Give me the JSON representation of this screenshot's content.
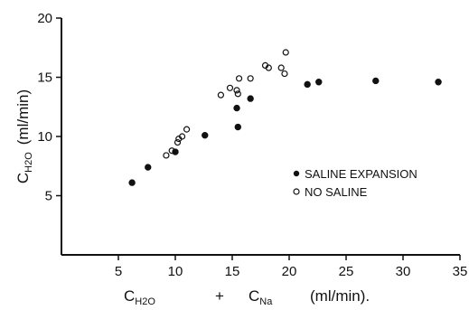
{
  "chart_data": {
    "type": "scatter",
    "title": "",
    "xlim": [
      0,
      35
    ],
    "ylim": [
      0,
      20
    ],
    "x_ticks": [
      5,
      10,
      15,
      20,
      25,
      30,
      35
    ],
    "y_ticks": [
      5,
      10,
      15,
      20
    ],
    "grid": false,
    "legend_position": "right",
    "xlabel": {
      "sym1": "C",
      "sub1": "H2O",
      "plus": "+",
      "sym2": "C",
      "sub2": "Na",
      "unit": "(ml/min)."
    },
    "ylabel": {
      "sym": "C",
      "sub": "H2O",
      "unit": "(ml/min)"
    },
    "series": [
      {
        "name": "SALINE EXPANSION",
        "marker": "filled",
        "color": "#111111",
        "points": [
          [
            6.2,
            6.1
          ],
          [
            7.6,
            7.4
          ],
          [
            10.0,
            8.7
          ],
          [
            12.6,
            10.1
          ],
          [
            15.4,
            12.4
          ],
          [
            15.5,
            10.8
          ],
          [
            16.6,
            13.2
          ],
          [
            21.6,
            14.4
          ],
          [
            22.6,
            14.6
          ],
          [
            27.6,
            14.7
          ],
          [
            33.1,
            14.6
          ]
        ]
      },
      {
        "name": "NO SALINE",
        "marker": "open",
        "color": "#111111",
        "points": [
          [
            9.2,
            8.4
          ],
          [
            9.7,
            8.8
          ],
          [
            10.2,
            9.5
          ],
          [
            10.3,
            9.8
          ],
          [
            10.6,
            10.0
          ],
          [
            11.0,
            10.6
          ],
          [
            14.0,
            13.5
          ],
          [
            14.8,
            14.1
          ],
          [
            15.4,
            13.9
          ],
          [
            15.5,
            13.6
          ],
          [
            15.6,
            14.9
          ],
          [
            16.6,
            14.9
          ],
          [
            17.9,
            16.0
          ],
          [
            18.2,
            15.8
          ],
          [
            19.3,
            15.8
          ],
          [
            19.6,
            15.3
          ],
          [
            19.7,
            17.1
          ]
        ]
      }
    ]
  }
}
